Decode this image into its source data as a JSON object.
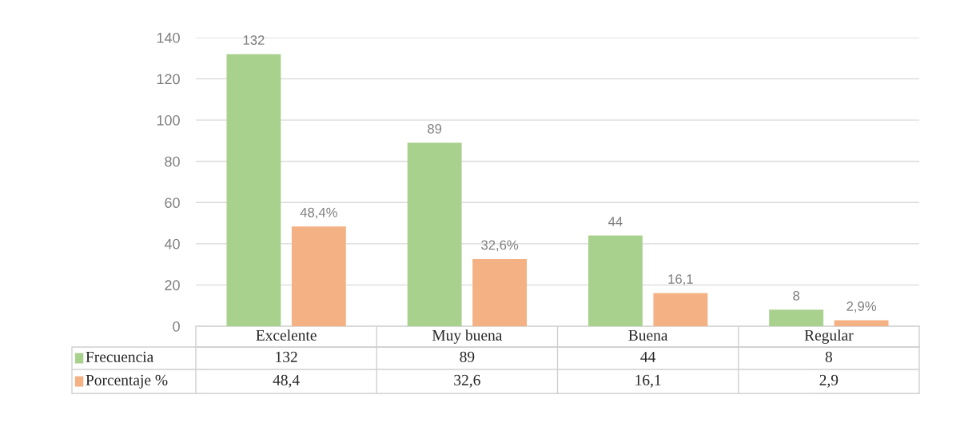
{
  "chart_data": {
    "type": "bar",
    "categories": [
      "Excelente",
      "Muy buena",
      "Buena",
      "Regular"
    ],
    "series": [
      {
        "name": "Frecuencia",
        "color": "#a9d18e",
        "values": [
          132,
          89,
          44,
          8
        ],
        "value_labels": [
          "132",
          "89",
          "44",
          "8"
        ]
      },
      {
        "name": "Porcentaje %",
        "color": "#f4b183",
        "values": [
          48.4,
          32.6,
          16.1,
          2.9
        ],
        "value_labels": [
          "48,4%",
          "32,6%",
          "16,1",
          "2,9%"
        ]
      }
    ],
    "ylim": [
      0,
      140
    ],
    "yticks": [
      0,
      20,
      40,
      60,
      80,
      100,
      120,
      140
    ],
    "annotations": [
      "132",
      "89",
      "44",
      "8",
      "48,4",
      "32,6",
      "16,1",
      "2,9"
    ],
    "grid": "y",
    "legend": "bottom",
    "data_labels": true
  }
}
